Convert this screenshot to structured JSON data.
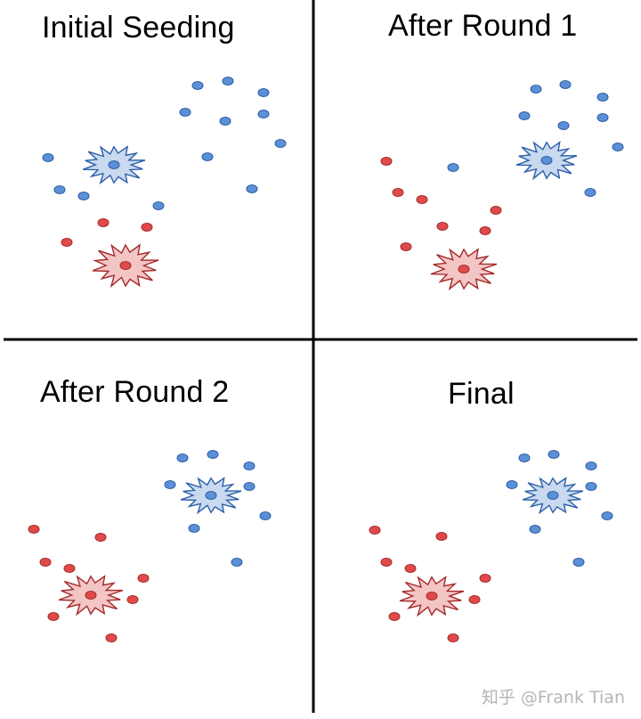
{
  "colors": {
    "blue_fill": "#5b8fd6",
    "blue_stroke": "#2c5fa8",
    "red_fill": "#e04a4a",
    "red_stroke": "#a52a2a",
    "blue_star_fill": "#c9d9ef",
    "red_star_fill": "#f3c5c5"
  },
  "panels": [
    {
      "id": "initial",
      "title": "Initial Seeding"
    },
    {
      "id": "round1",
      "title": "After Round 1"
    },
    {
      "id": "round2",
      "title": "After Round 2"
    },
    {
      "id": "final",
      "title": "Final"
    }
  ],
  "watermark": "知乎 @Frank Tian"
}
